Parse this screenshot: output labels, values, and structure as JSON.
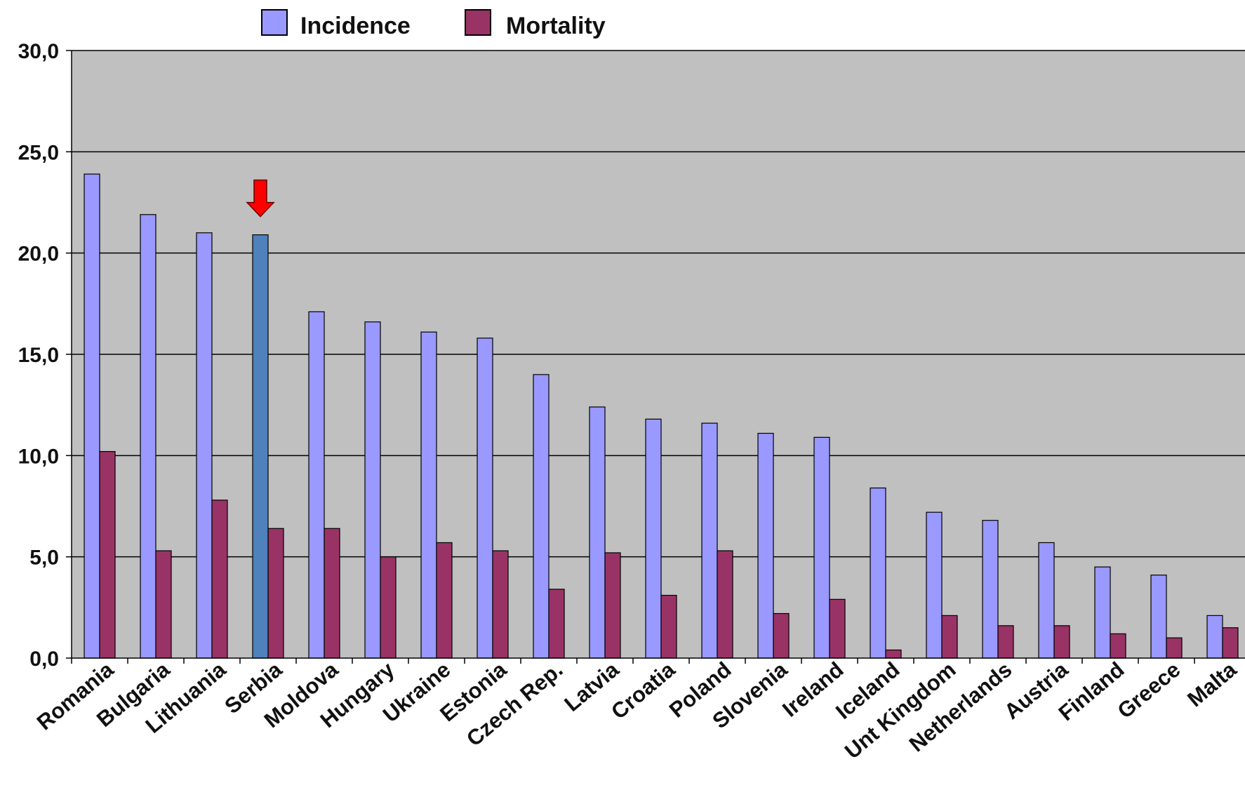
{
  "chart_data": {
    "type": "bar",
    "categories": [
      "Romania",
      "Bulgaria",
      "Lithuania",
      "Serbia",
      "Moldova",
      "Hungary",
      "Ukraine",
      "Estonia",
      "Czech Rep.",
      "Latvia",
      "Croatia",
      "Poland",
      "Slovenia",
      "Ireland",
      "Iceland",
      "Unt Kingdom",
      "Netherlands",
      "Austria",
      "Finland",
      "Greece",
      "Malta"
    ],
    "series": [
      {
        "name": "Incidence",
        "color": "#9999ff",
        "values": [
          23.9,
          21.9,
          21.0,
          20.9,
          17.1,
          16.6,
          16.1,
          15.8,
          14.0,
          12.4,
          11.8,
          11.6,
          11.1,
          10.9,
          8.4,
          7.2,
          6.8,
          5.7,
          4.5,
          4.1,
          2.1
        ]
      },
      {
        "name": "Mortality",
        "color": "#993366",
        "values": [
          10.2,
          5.3,
          7.8,
          6.4,
          6.4,
          5.0,
          5.7,
          5.3,
          3.4,
          5.2,
          3.1,
          5.3,
          2.2,
          2.9,
          0.4,
          2.1,
          1.6,
          1.6,
          1.2,
          1.0,
          1.5
        ]
      }
    ],
    "yticks": [
      "0,0",
      "5,0",
      "10,0",
      "15,0",
      "20,0",
      "25,0",
      "30,0"
    ],
    "ylim": [
      0,
      30
    ],
    "grid": true,
    "legend": "top",
    "highlight": {
      "category": "Serbia",
      "bar_color": "#4f81bd",
      "label_color": "#ff0000",
      "marker": "red-arrow",
      "marker_color": "#ff0000"
    },
    "plot_background": "#c0c0c0"
  }
}
